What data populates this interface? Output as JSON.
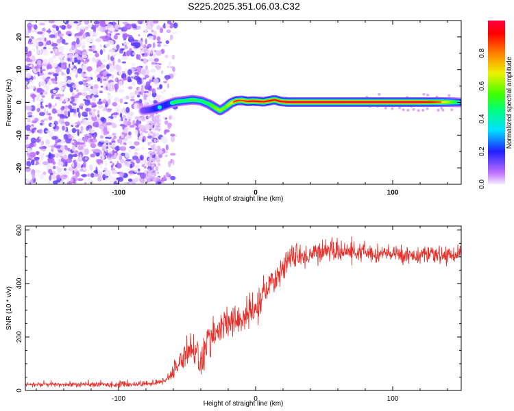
{
  "figure_title": "S225.2025.351.06.03.C32",
  "chart_data": [
    {
      "type": "heatmap",
      "name": "spectrogram",
      "title": "S225.2025.351.06.03.C32",
      "xlabel": "Height of straight line (km)",
      "ylabel": "Frequency (Hz)",
      "xlim": [
        -168,
        150
      ],
      "ylim": [
        -25,
        25
      ],
      "x_ticks": [
        -100,
        0,
        100
      ],
      "y_ticks": [
        -20,
        -10,
        0,
        10,
        20
      ],
      "x_tick_labels": [
        "-100",
        "0",
        "100"
      ],
      "y_tick_labels": [
        "-20",
        "-10",
        "0",
        "10",
        "20"
      ],
      "noise_region_x": [
        -168,
        -70
      ],
      "ridge": {
        "x": [
          -82,
          -76,
          -70,
          -64,
          -58,
          -52,
          -46,
          -40,
          -34,
          -30,
          -26,
          -22,
          -18,
          -14,
          -10,
          -6,
          -2,
          2,
          6,
          10,
          14,
          18,
          24,
          40,
          60,
          80,
          100,
          120,
          140,
          150
        ],
        "frequency": [
          -2.5,
          -2.2,
          -1.5,
          -0.5,
          0.2,
          0.5,
          0.8,
          0.5,
          -0.5,
          -1.5,
          -2.5,
          -1.5,
          -0.2,
          0.5,
          0.6,
          0.3,
          0.4,
          0.3,
          0.2,
          0.5,
          0.8,
          0.3,
          0.1,
          0.1,
          0.1,
          0.1,
          0.1,
          0.1,
          0.1,
          0.0
        ],
        "amplitude": [
          0.3,
          0.4,
          0.55,
          0.5,
          0.6,
          0.55,
          0.6,
          0.55,
          0.6,
          0.7,
          0.75,
          0.7,
          0.8,
          0.9,
          0.85,
          0.9,
          0.95,
          0.95,
          0.9,
          0.95,
          0.9,
          0.95,
          1.0,
          1.0,
          1.0,
          1.0,
          1.0,
          1.0,
          0.8,
          0.5
        ]
      },
      "colorbar": {
        "label": "Normalized spectral amplitude",
        "range": [
          0,
          1
        ],
        "ticks": [
          0.0,
          0.2,
          0.4,
          0.6,
          0.8
        ],
        "tick_labels": [
          "0.0",
          "0.2",
          "0.4",
          "0.6",
          "0.8"
        ]
      }
    },
    {
      "type": "line",
      "name": "snr",
      "xlabel": "Height of straight line (km)",
      "ylabel": "SNR (10 * v/v)",
      "xlim": [
        -168,
        150
      ],
      "ylim": [
        0,
        615
      ],
      "x_ticks": [
        -100,
        0,
        100
      ],
      "y_ticks": [
        0,
        200,
        400,
        600
      ],
      "x_tick_labels": [
        "-100",
        "0",
        "100"
      ],
      "y_tick_labels": [
        "0",
        "200",
        "400",
        "600"
      ],
      "color": "#e8302a",
      "trend": {
        "x": [
          -168,
          -100,
          -80,
          -70,
          -62,
          -55,
          -48,
          -42,
          -40,
          -35,
          -30,
          -20,
          -10,
          0,
          10,
          20,
          25,
          30,
          40,
          50,
          60,
          80,
          100,
          120,
          140,
          150
        ],
        "y": [
          22,
          22,
          25,
          30,
          55,
          110,
          160,
          140,
          90,
          185,
          215,
          250,
          270,
          300,
          390,
          460,
          500,
          490,
          510,
          525,
          520,
          515,
          510,
          505,
          505,
          510
        ]
      },
      "noise_amplitude": {
        "x": [
          -168,
          -70,
          -60,
          -45,
          -30,
          0,
          30,
          80,
          150
        ],
        "y": [
          8,
          10,
          25,
          60,
          55,
          55,
          40,
          30,
          25
        ]
      }
    }
  ]
}
